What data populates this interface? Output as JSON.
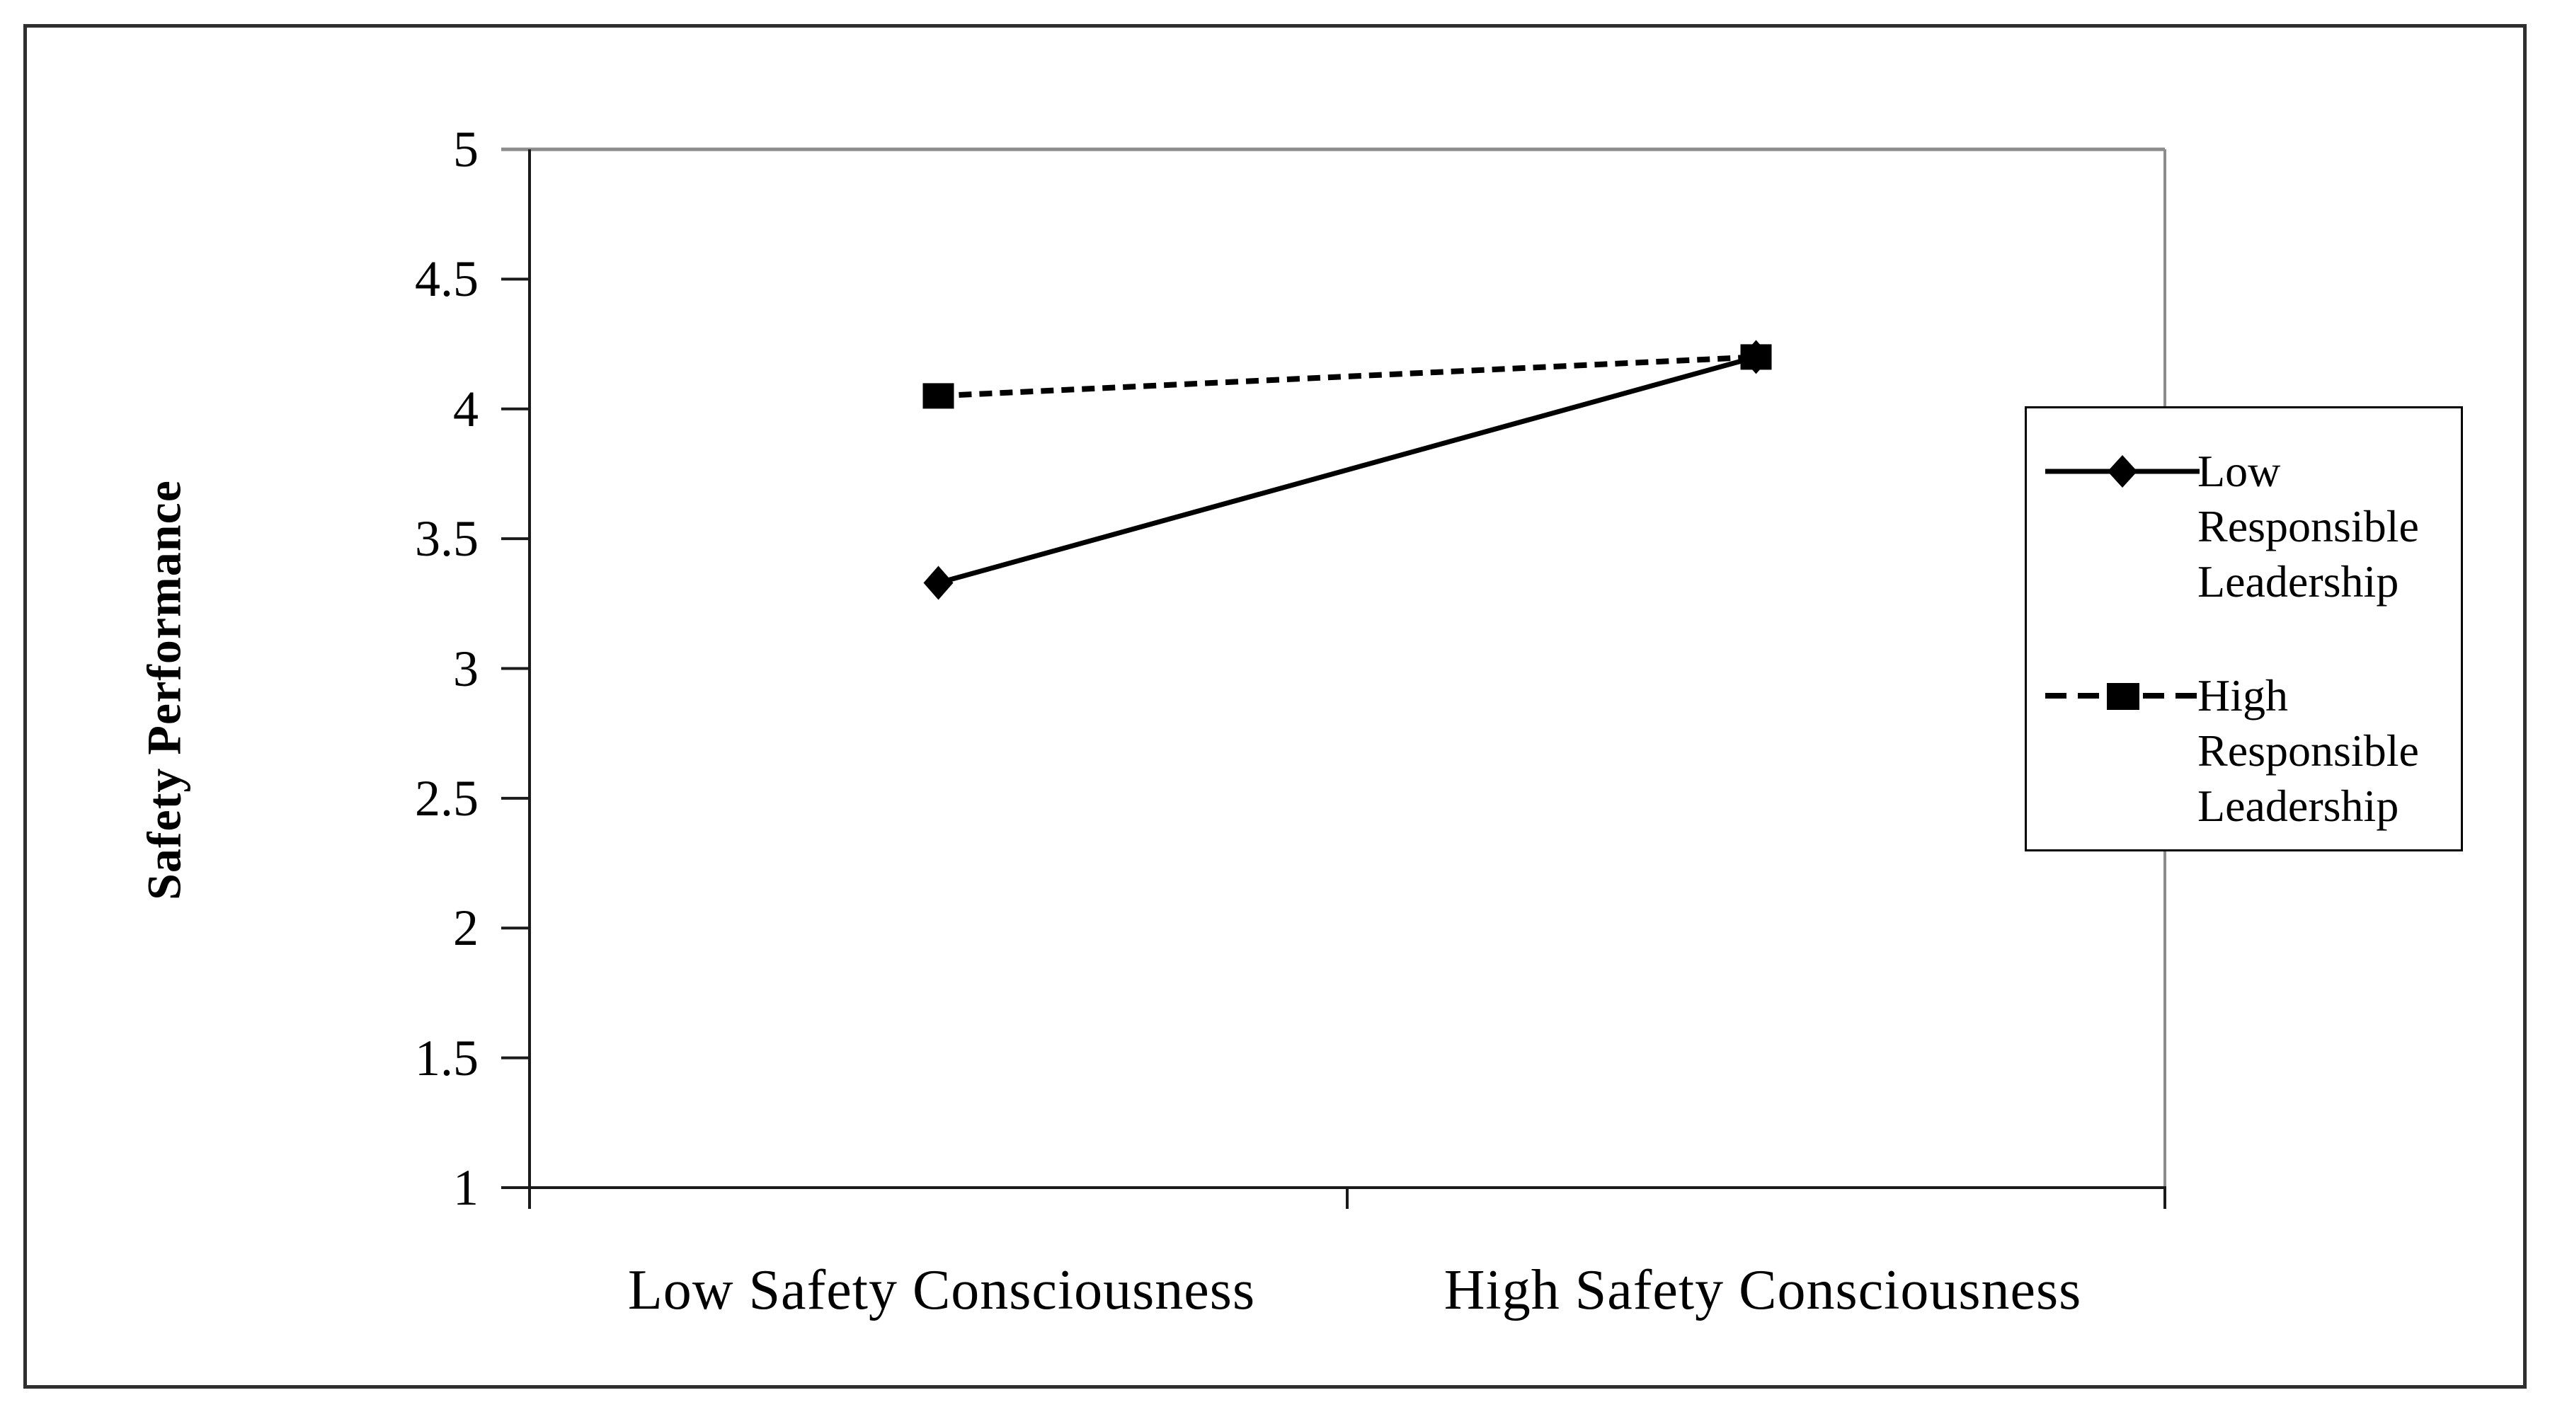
{
  "chart_data": {
    "type": "line",
    "title": "",
    "xlabel": "",
    "ylabel": "Safety Performance",
    "categories": [
      "Low Safety Consciousness",
      "High Safety Consciousness"
    ],
    "series": [
      {
        "name": "Low Responsible Leadership",
        "marker": "diamond",
        "line_style": "solid",
        "values": [
          3.33,
          4.2
        ]
      },
      {
        "name": "High Responsible Leadership",
        "marker": "square",
        "line_style": "dashed",
        "values": [
          4.05,
          4.2
        ]
      }
    ],
    "ylim": [
      1,
      5
    ],
    "ytick_step": 0.5,
    "yticks": [
      "5",
      "4.5",
      "4",
      "3.5",
      "3",
      "2.5",
      "2",
      "1.5",
      "1"
    ],
    "grid": false,
    "legend_position": "right",
    "colors": {
      "series_line": "#000000",
      "marker_fill": "#000000",
      "axis_line": "#1a1a1a",
      "plot_border": "#8c8c8c",
      "outer_border": "#2f2f2f",
      "background": "#ffffff"
    }
  }
}
